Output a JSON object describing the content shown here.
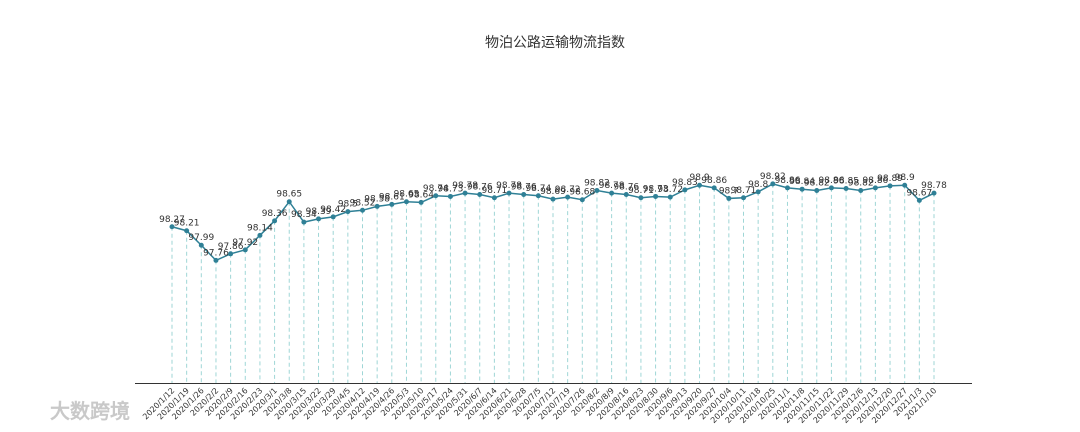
{
  "chart_data": {
    "type": "line",
    "title": "物泊公路运输物流指数",
    "categories": [
      "2020/1/12",
      "2020/1/19",
      "2020/1/26",
      "2020/2/2",
      "2020/2/9",
      "2020/2/16",
      "2020/2/23",
      "2020/3/1",
      "2020/3/8",
      "2020/3/15",
      "2020/3/22",
      "2020/3/29",
      "2020/4/5",
      "2020/4/12",
      "2020/4/19",
      "2020/4/26",
      "2020/5/3",
      "2020/5/10",
      "2020/5/17",
      "2020/5/24",
      "2020/5/31",
      "2020/6/7",
      "2020/6/14",
      "2020/6/21",
      "2020/6/28",
      "2020/7/5",
      "2020/7/12",
      "2020/7/19",
      "2020/7/26",
      "2020/8/2",
      "2020/8/9",
      "2020/8/16",
      "2020/8/23",
      "2020/8/30",
      "2020/9/6",
      "2020/9/13",
      "2020/9/20",
      "2020/9/27",
      "2020/10/4",
      "2020/10/11",
      "2020/10/18",
      "2020/10/25",
      "2020/11/1",
      "2020/11/8",
      "2020/11/15",
      "2020/11/22",
      "2020/11/29",
      "2020/12/6",
      "2020/12/13",
      "2020/12/20",
      "2020/12/27",
      "2021/1/3",
      "2021/1/10"
    ],
    "values": [
      98.27,
      98.21,
      97.99,
      97.76,
      97.86,
      97.92,
      98.14,
      98.36,
      98.65,
      98.34,
      98.39,
      98.42,
      98.5,
      98.52,
      98.58,
      98.61,
      98.65,
      98.64,
      98.74,
      98.73,
      98.78,
      98.76,
      98.71,
      98.78,
      98.76,
      98.74,
      98.69,
      98.72,
      98.68,
      98.82,
      98.78,
      98.76,
      98.71,
      98.73,
      98.72,
      98.83,
      98.9,
      98.86,
      98.7,
      98.71,
      98.8,
      98.92,
      98.86,
      98.84,
      98.82,
      98.86,
      98.85,
      98.82,
      98.86,
      98.89,
      98.9,
      98.67,
      98.78
    ],
    "color": "#2f8096",
    "ylim": [
      95.9,
      100.8
    ],
    "watermark": "大数跨境"
  }
}
